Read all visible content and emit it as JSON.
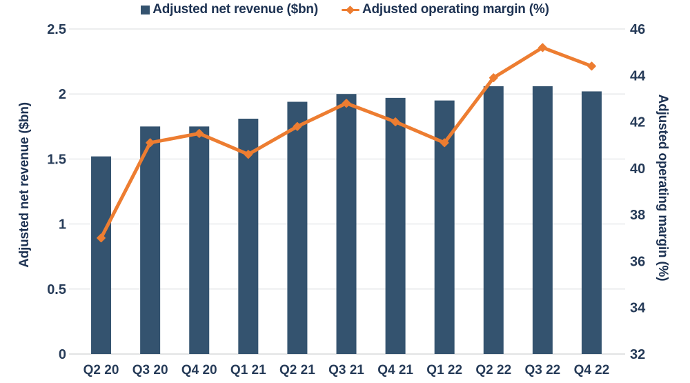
{
  "legend": {
    "items": [
      {
        "label": "Adjusted net revenue ($bn)",
        "marker": "square",
        "color": "#34536F"
      },
      {
        "label": "Adjusted operating margin (%)",
        "marker": "line-diamond",
        "color": "#ED7D31"
      }
    ]
  },
  "chart_data": {
    "type": "bar+line combo, dual axis",
    "categories": [
      "Q2 20",
      "Q3 20",
      "Q4 20",
      "Q1 21",
      "Q2 21",
      "Q3 21",
      "Q4 21",
      "Q1 22",
      "Q2 22",
      "Q3 22",
      "Q4 22"
    ],
    "series": [
      {
        "name": "Adjusted net revenue ($bn)",
        "type": "bar",
        "axis": "left",
        "color": "#34536F",
        "values": [
          1.52,
          1.75,
          1.75,
          1.81,
          1.94,
          2.0,
          1.97,
          1.95,
          2.06,
          2.06,
          2.02
        ]
      },
      {
        "name": "Adjusted operating margin (%)",
        "type": "line",
        "axis": "right",
        "color": "#ED7D31",
        "marker": "diamond",
        "values": [
          37.0,
          41.1,
          41.5,
          40.6,
          41.8,
          42.8,
          42.0,
          41.1,
          43.9,
          45.2,
          44.4
        ]
      }
    ],
    "left_axis": {
      "label": "Adjusted net revenue ($bn)",
      "min": 0,
      "max": 2.5,
      "tick_values": [
        0,
        0.5,
        1,
        1.5,
        2,
        2.5
      ],
      "tick_labels": [
        "0",
        "0.5",
        "1",
        "1.5",
        "2",
        "2.5"
      ]
    },
    "right_axis": {
      "label": "Adjusted operating margin (%)",
      "min": 32,
      "max": 46,
      "tick_values": [
        32,
        34,
        36,
        38,
        40,
        42,
        44,
        46
      ],
      "tick_labels": [
        "32",
        "34",
        "36",
        "38",
        "40",
        "42",
        "44",
        "46"
      ]
    },
    "grid": true,
    "legend_position": "top-center",
    "title": ""
  },
  "colors": {
    "bar": "#34536F",
    "line": "#ED7D31",
    "grid": "#E5E7E9",
    "baseline": "#D8DADC",
    "tick_text": "#263B58",
    "title_text": "#1D3252",
    "background": "#FFFFFF"
  }
}
